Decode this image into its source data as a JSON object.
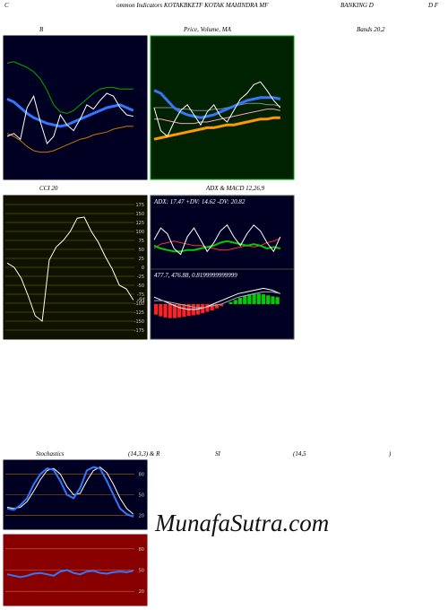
{
  "header": {
    "row1": [
      "C",
      "ommon Indicators KOTAKBKETF KOTAK MAHINDRA MF",
      "BANKING D",
      "D F"
    ],
    "row2": [
      "B",
      "Price, Volume, MA",
      "Bands 20,2"
    ],
    "row3": [
      "CCI 20",
      "ADX  & MACD 12,26,9"
    ],
    "row4": [
      "Stochastics",
      "(14,3,3) & R",
      "SI",
      "(14,5",
      ")"
    ]
  },
  "watermark": "MunafaSutra.com",
  "chart_data": [
    {
      "type": "line",
      "background": "#000022",
      "border": "#000022",
      "ylim": [
        0,
        100
      ],
      "series": [
        {
          "color": "#00aa00",
          "line_width": 1,
          "values": [
            81,
            82,
            80,
            78,
            75,
            70,
            62,
            52,
            47,
            46,
            48,
            52,
            56,
            60,
            63,
            64,
            64,
            63,
            63,
            63
          ]
        },
        {
          "color": "#cc7700",
          "line_width": 1,
          "values": [
            32,
            30,
            27,
            23,
            20,
            19,
            19,
            20,
            22,
            24,
            26,
            28,
            29,
            31,
            32,
            33,
            35,
            36,
            37,
            37
          ]
        },
        {
          "color": "#3377ff",
          "line_width": 3,
          "values": [
            56,
            54,
            50,
            46,
            43,
            41,
            39,
            38,
            37,
            38,
            40,
            42,
            44,
            46,
            48,
            50,
            51,
            52,
            50,
            48
          ]
        },
        {
          "color": "#ffffff",
          "line_width": 1,
          "values": [
            30,
            32,
            28,
            50,
            58,
            40,
            25,
            30,
            45,
            38,
            34,
            42,
            52,
            49,
            55,
            60,
            58,
            50,
            45,
            44
          ]
        }
      ]
    },
    {
      "type": "line",
      "background": "#002200",
      "border": "#00aa00",
      "ylim": [
        0,
        100
      ],
      "series": [
        {
          "color": "#888888",
          "line_width": 1,
          "values": [
            50,
            50,
            50,
            50,
            49,
            49,
            48,
            48,
            48,
            49,
            49,
            50,
            51,
            52,
            53,
            53,
            53,
            52,
            52,
            51
          ]
        },
        {
          "color": "#ff9900",
          "line_width": 3,
          "values": [
            28,
            29,
            30,
            31,
            32,
            33,
            34,
            35,
            36,
            36,
            37,
            38,
            38,
            39,
            40,
            41,
            42,
            42,
            43,
            43
          ]
        },
        {
          "color": "#ff99cc",
          "line_width": 1,
          "values": [
            42,
            42,
            41,
            40,
            39,
            39,
            39,
            40,
            40,
            41,
            42,
            43,
            44,
            45,
            46,
            47,
            48,
            49,
            49,
            48
          ]
        },
        {
          "color": "#3377ff",
          "line_width": 3,
          "values": [
            62,
            60,
            55,
            50,
            47,
            45,
            44,
            43,
            44,
            45,
            47,
            49,
            51,
            53,
            55,
            56,
            57,
            57,
            57,
            56
          ]
        },
        {
          "color": "#ffffff",
          "line_width": 1,
          "values": [
            50,
            34,
            30,
            40,
            48,
            52,
            45,
            38,
            47,
            52,
            44,
            40,
            48,
            56,
            60,
            66,
            68,
            62,
            55,
            50
          ]
        }
      ]
    },
    {
      "type": "line",
      "background": "#111100",
      "border": "#111100",
      "ylim": [
        -200,
        200
      ],
      "grid": true,
      "grid_color": "#777700",
      "last_label": true,
      "yticks": [
        175,
        150,
        125,
        100,
        75,
        50,
        25,
        0,
        -25,
        -50,
        -75,
        -100,
        -125,
        -150,
        -175
      ],
      "series": [
        {
          "color": "#ffffff",
          "line_width": 1,
          "values": [
            12,
            0,
            -30,
            -80,
            -135,
            -150,
            20,
            57,
            75,
            100,
            137,
            140,
            100,
            70,
            30,
            -5,
            -50,
            -60,
            -91
          ]
        }
      ]
    },
    {
      "type": "line",
      "background": "#000022",
      "border": "#444444",
      "ylim": [
        0,
        50
      ],
      "readout": "ADX: 17.47 +DV: 14.62 -DV: 20.82",
      "series": [
        {
          "color": "#ff3333",
          "line_width": 1,
          "values": [
            14,
            17,
            18,
            19,
            18,
            17,
            16,
            16,
            15,
            14,
            13,
            13,
            14,
            15,
            16,
            15,
            16,
            18,
            19,
            21
          ]
        },
        {
          "color": "#00cc00",
          "line_width": 2,
          "values": [
            16,
            14,
            13,
            12,
            12,
            13,
            13,
            14,
            15,
            16,
            18,
            19,
            18,
            17,
            16,
            17,
            16,
            14,
            15,
            14
          ]
        },
        {
          "color": "#ffffff",
          "line_width": 1,
          "values": [
            20,
            28,
            24,
            14,
            10,
            22,
            28,
            20,
            12,
            18,
            26,
            30,
            22,
            16,
            24,
            30,
            26,
            18,
            12,
            22
          ]
        }
      ]
    },
    {
      "type": "line",
      "background": "#000022",
      "border": "#444444",
      "ylim": [
        -10,
        10
      ],
      "readout": "477.7, 476.88, 0.8199999999999",
      "histogram_colors": [
        "#00cc00",
        "#ff2222"
      ],
      "histogram": [
        -3,
        -3.5,
        -3.8,
        -4,
        -4,
        -3.8,
        -3.6,
        -3.4,
        -3.2,
        -3,
        -2.6,
        -2.2,
        -1.8,
        -1.2,
        -0.6,
        0,
        0.6,
        1.2,
        1.8,
        2.4,
        2.8,
        3,
        3,
        2.8,
        2.5,
        2.2,
        2
      ],
      "series": [
        {
          "color": "#ffffff",
          "line_width": 1,
          "values": [
            2,
            1,
            0,
            -1,
            -1.5,
            -1.5,
            -1,
            0,
            1,
            2,
            3,
            3.5,
            4,
            4.5,
            4,
            3
          ]
        },
        {
          "color": "#aaaaaa",
          "line_width": 1,
          "values": [
            1,
            1,
            0.5,
            0,
            -0.5,
            -1,
            -1,
            -0.5,
            0,
            1,
            2,
            2.5,
            3,
            3.5,
            3.5,
            3
          ]
        }
      ]
    },
    {
      "type": "line",
      "background": "#000022",
      "border": "#000022",
      "ylim": [
        0,
        100
      ],
      "grid": true,
      "grid_color": "#aa6600",
      "yticks": [
        80,
        50,
        20
      ],
      "series": [
        {
          "color": "#ffffff",
          "line_width": 1,
          "values": [
            32,
            30,
            32,
            40,
            55,
            72,
            85,
            88,
            80,
            62,
            50,
            52,
            70,
            85,
            90,
            82,
            65,
            45,
            30,
            22
          ]
        },
        {
          "color": "#3377ff",
          "line_width": 2,
          "values": [
            30,
            28,
            35,
            45,
            65,
            80,
            88,
            86,
            70,
            50,
            45,
            60,
            85,
            90,
            88,
            70,
            50,
            30,
            22,
            18
          ]
        }
      ]
    },
    {
      "type": "line",
      "background": "#880000",
      "border": "#880000",
      "ylim": [
        0,
        100
      ],
      "grid": true,
      "grid_color": "#cc6644",
      "yticks": [
        80,
        50,
        20
      ],
      "series": [
        {
          "color": "#3377ff",
          "line_width": 2,
          "values": [
            44,
            42,
            40,
            42,
            45,
            46,
            44,
            42,
            48,
            50,
            46,
            44,
            48,
            49,
            46,
            45,
            47,
            48,
            47,
            49
          ]
        }
      ]
    }
  ]
}
